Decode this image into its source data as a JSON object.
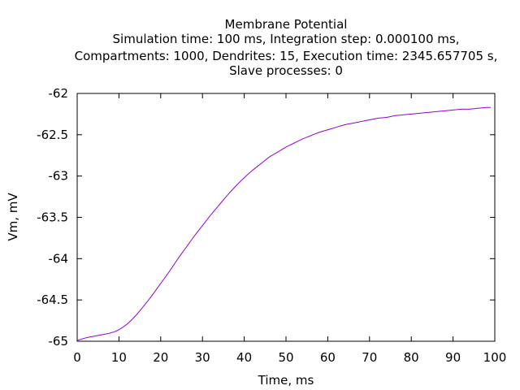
{
  "chart_data": {
    "type": "line",
    "title_lines": [
      "Membrane Potential",
      "Simulation time: 100 ms, Integration step: 0.000100 ms,",
      "Compartments: 1000, Dendrites: 15, Execution time: 2345.657705 s,",
      "Slave processes: 0"
    ],
    "xlabel": "Time, ms",
    "ylabel": "Vm, mV",
    "xlim": [
      0,
      100
    ],
    "ylim": [
      -65,
      -62
    ],
    "xticks": [
      0,
      10,
      20,
      30,
      40,
      50,
      60,
      70,
      80,
      90,
      100
    ],
    "xtick_labels": [
      "0",
      "10",
      "20",
      "30",
      "40",
      "50",
      "60",
      "70",
      "80",
      "90",
      "100"
    ],
    "yticks": [
      -65,
      -64.5,
      -64,
      -63.5,
      -63,
      -62.5,
      -62
    ],
    "ytick_labels": [
      "-65",
      "-64.5",
      "-64",
      "-63.5",
      "-63",
      "-62.5",
      "-62"
    ],
    "grid": false,
    "series": [
      {
        "color": "#9400d3",
        "x": [
          0,
          2,
          4,
          6,
          8,
          10,
          12,
          14,
          16,
          18,
          20,
          22,
          24,
          26,
          28,
          30,
          32,
          34,
          36,
          38,
          40,
          42,
          44,
          46,
          48,
          50,
          52,
          54,
          56,
          58,
          60,
          62,
          64,
          66,
          68,
          70,
          72,
          74,
          76,
          78,
          80,
          82,
          84,
          86,
          88,
          90,
          92,
          94,
          96,
          98,
          99
        ],
        "y": [
          -64.99,
          -64.96,
          -64.94,
          -64.92,
          -64.9,
          -64.86,
          -64.79,
          -64.69,
          -64.57,
          -64.44,
          -64.3,
          -64.16,
          -64.01,
          -63.87,
          -63.73,
          -63.6,
          -63.47,
          -63.35,
          -63.23,
          -63.12,
          -63.02,
          -62.93,
          -62.85,
          -62.77,
          -62.71,
          -62.65,
          -62.6,
          -62.55,
          -62.51,
          -62.47,
          -62.44,
          -62.41,
          -62.38,
          -62.36,
          -62.34,
          -62.32,
          -62.3,
          -62.29,
          -62.27,
          -62.26,
          -62.25,
          -62.24,
          -62.23,
          -62.22,
          -62.21,
          -62.2,
          -62.19,
          -62.19,
          -62.18,
          -62.17,
          -62.17
        ]
      }
    ]
  }
}
